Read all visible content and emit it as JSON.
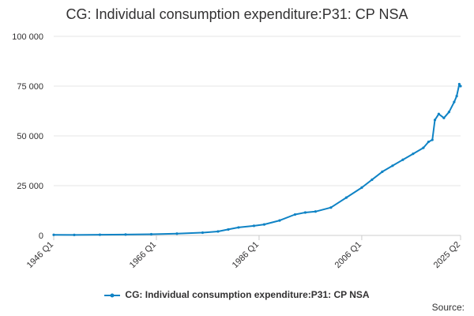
{
  "chart_data": {
    "type": "line",
    "title": "CG: Individual consumption expenditure:P31: CP NSA",
    "xlabel": "",
    "ylabel": "",
    "x_range": [
      "1946 Q1",
      "2025 Q2"
    ],
    "x_ticks": [
      "1946 Q1",
      "1966 Q1",
      "1986 Q1",
      "2006 Q1",
      "2025 Q2"
    ],
    "y_ticks": [
      "0",
      "25 000",
      "50 000",
      "75 000",
      "100 000"
    ],
    "ylim": [
      0,
      100000
    ],
    "grid": true,
    "legend_position": "bottom",
    "color": "#0f83c5",
    "series": [
      {
        "name": "CG: Individual consumption expenditure:P31: CP NSA",
        "points": [
          [
            "1946 Q1",
            300
          ],
          [
            "1950 Q1",
            250
          ],
          [
            "1955 Q1",
            350
          ],
          [
            "1960 Q1",
            450
          ],
          [
            "1965 Q1",
            600
          ],
          [
            "1970 Q1",
            900
          ],
          [
            "1975 Q1",
            1400
          ],
          [
            "1978 Q1",
            2000
          ],
          [
            "1980 Q1",
            3000
          ],
          [
            "1982 Q1",
            4000
          ],
          [
            "1985 Q1",
            4800
          ],
          [
            "1987 Q1",
            5500
          ],
          [
            "1990 Q1",
            7500
          ],
          [
            "1993 Q1",
            10500
          ],
          [
            "1995 Q1",
            11500
          ],
          [
            "1997 Q1",
            12000
          ],
          [
            "2000 Q1",
            14000
          ],
          [
            "2003 Q1",
            19000
          ],
          [
            "2006 Q1",
            24000
          ],
          [
            "2008 Q1",
            28000
          ],
          [
            "2010 Q1",
            32000
          ],
          [
            "2012 Q1",
            35000
          ],
          [
            "2014 Q1",
            38000
          ],
          [
            "2016 Q1",
            41000
          ],
          [
            "2018 Q1",
            44000
          ],
          [
            "2019 Q1",
            47000
          ],
          [
            "2019 Q4",
            48000
          ],
          [
            "2020 Q2",
            58000
          ],
          [
            "2021 Q1",
            61000
          ],
          [
            "2022 Q1",
            59000
          ],
          [
            "2023 Q1",
            62000
          ],
          [
            "2024 Q1",
            67000
          ],
          [
            "2024 Q3",
            70000
          ],
          [
            "2025 Q1",
            76000
          ],
          [
            "2025 Q2",
            75000
          ]
        ]
      }
    ]
  },
  "footer": {
    "source_label": "Source:"
  }
}
